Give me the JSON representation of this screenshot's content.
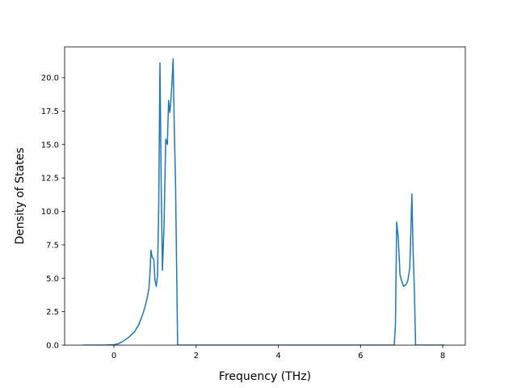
{
  "chart_data": {
    "type": "line",
    "title": "",
    "xlabel": "Frequency (THz)",
    "ylabel": "Density of States",
    "xlim": [
      -1.2,
      8.55
    ],
    "ylim": [
      0,
      22.3
    ],
    "xticks": [
      0,
      2,
      4,
      6,
      8
    ],
    "yticks": [
      0.0,
      2.5,
      5.0,
      7.5,
      10.0,
      12.5,
      15.0,
      17.5,
      20.0
    ],
    "xtick_labels": [
      "0",
      "2",
      "4",
      "6",
      "8"
    ],
    "ytick_labels": [
      "0.0",
      "2.5",
      "5.0",
      "7.5",
      "10.0",
      "12.5",
      "15.0",
      "17.5",
      "20.0"
    ],
    "grid": false,
    "legend": "none",
    "color": "#1f77b4",
    "series": [
      {
        "x": [
          -0.75,
          -0.5,
          -0.2,
          0.0,
          0.1,
          0.2,
          0.3,
          0.4,
          0.5,
          0.6,
          0.65,
          0.7,
          0.75,
          0.8,
          0.85,
          0.88,
          0.9,
          0.93,
          0.97,
          1.0,
          1.03,
          1.06,
          1.09,
          1.12,
          1.15,
          1.18,
          1.22,
          1.26,
          1.3,
          1.33,
          1.36,
          1.38,
          1.41,
          1.44,
          1.47,
          1.5,
          1.52,
          1.55,
          1.6,
          1.8,
          3.0,
          5.0,
          6.5,
          6.82,
          6.85,
          6.88,
          6.92,
          6.96,
          7.0,
          7.05,
          7.1,
          7.15,
          7.2,
          7.25,
          7.28,
          7.31,
          7.34,
          7.38,
          8.05
        ],
        "y": [
          0,
          0,
          0,
          0.03,
          0.1,
          0.25,
          0.45,
          0.7,
          1.0,
          1.5,
          1.9,
          2.3,
          2.8,
          3.4,
          4.2,
          5.5,
          7.1,
          6.6,
          6.4,
          4.8,
          4.4,
          5.2,
          10.5,
          21.1,
          12.0,
          5.6,
          9.0,
          15.4,
          15.0,
          18.3,
          17.4,
          18.0,
          19.5,
          21.4,
          16.0,
          12.0,
          7.0,
          0,
          0,
          0,
          0,
          0,
          0,
          0,
          1.5,
          9.2,
          8.0,
          5.3,
          4.8,
          4.4,
          4.5,
          4.8,
          5.8,
          11.3,
          7.0,
          4.2,
          0,
          0,
          0
        ]
      }
    ]
  }
}
